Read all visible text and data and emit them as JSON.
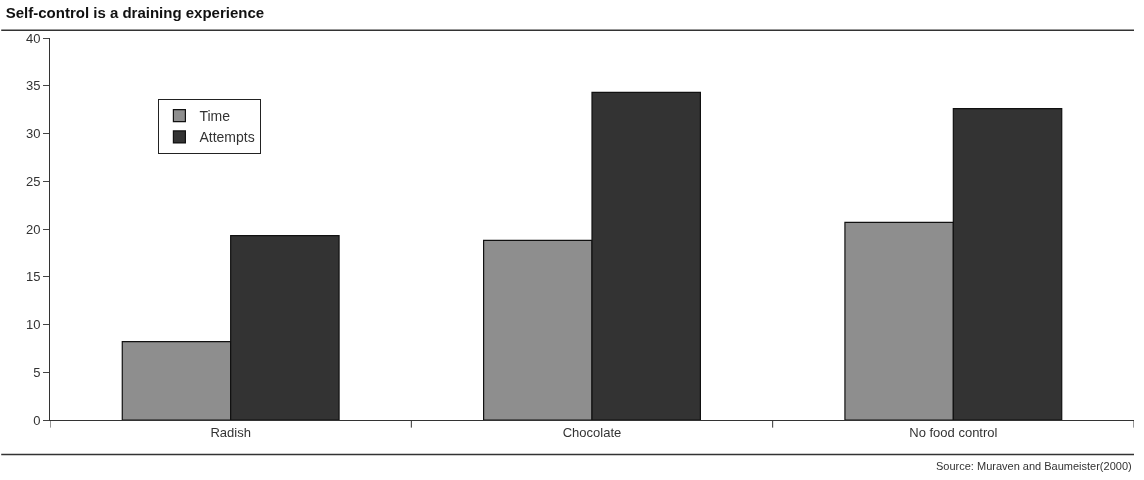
{
  "chart_data": {
    "type": "bar",
    "title": "Self-control is a draining experience",
    "categories": [
      "Radish",
      "Chocolate",
      "No food control"
    ],
    "series": [
      {
        "name": "Time",
        "color": "#8e8e8e",
        "values": [
          8.2,
          18.8,
          20.7
        ]
      },
      {
        "name": "Attempts",
        "color": "#333333",
        "values": [
          19.3,
          34.3,
          32.6
        ]
      }
    ],
    "ylim": [
      0,
      40
    ],
    "yticks": [
      0,
      5,
      10,
      15,
      20,
      25,
      30,
      35,
      40
    ],
    "legend": "top left",
    "annotations": [
      "Source: Muraven and Baumeister(2000)"
    ]
  }
}
